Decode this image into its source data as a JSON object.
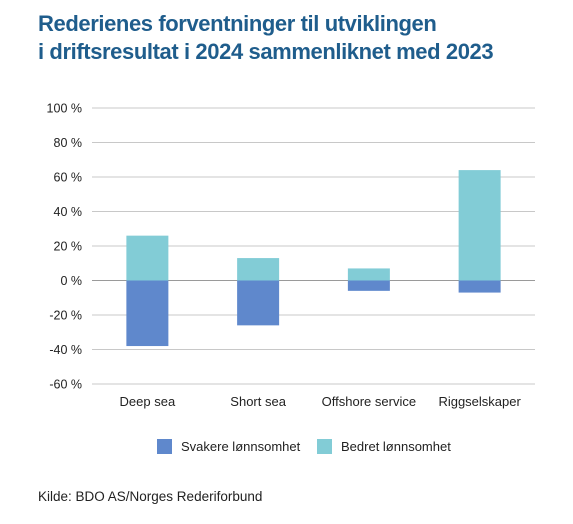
{
  "title_lines": [
    "Rederienes forventninger til utviklingen",
    "i driftsresultat i 2024 sammenliknet med 2023"
  ],
  "source": "Kilde: BDO AS/Norges Rederiforbund",
  "colors": {
    "title": "#1f5d8c",
    "negative": "#5f88cc",
    "positive": "#82ccd6",
    "grid": "#c8c8c8",
    "axis": "#9a9a9a"
  },
  "chart_data": {
    "type": "bar",
    "stacked": true,
    "categories": [
      "Deep sea",
      "Short sea",
      "Offshore service",
      "Riggselskaper"
    ],
    "series": [
      {
        "name": "Svakere lønnsomhet",
        "color": "#5f88cc",
        "values": [
          -38,
          -26,
          -6,
          -7
        ]
      },
      {
        "name": "Bedret lønnsomhet",
        "color": "#82ccd6",
        "values": [
          26,
          13,
          7,
          64
        ]
      }
    ],
    "ylim": [
      -60,
      100
    ],
    "yticks": [
      100,
      80,
      60,
      40,
      20,
      0,
      -20,
      -40,
      -60
    ],
    "ytick_labels": [
      "100 %",
      "80 %",
      "60 %",
      "40 %",
      "20 %",
      "0 %",
      "-20 %",
      "-40 %",
      "-60 %"
    ],
    "grid": true,
    "legend_position": "bottom",
    "xlabel": "",
    "ylabel": ""
  }
}
